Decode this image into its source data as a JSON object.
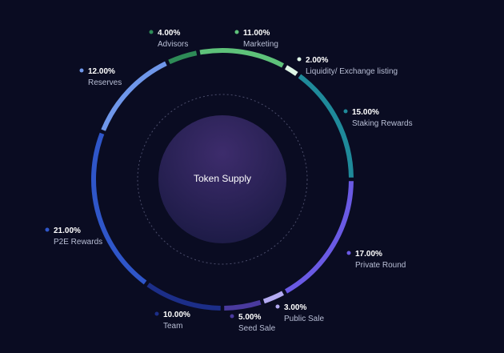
{
  "chart_data": {
    "type": "donut",
    "center_label": "Token Supply",
    "categories": [
      "Marketing",
      "Liquidity/ Exchange listing",
      "Staking Rewards",
      "Private Round",
      "Public Sale",
      "Seed Sale",
      "Team",
      "P2E Rewards",
      "Reserves",
      "Advisors"
    ],
    "values": [
      11,
      2,
      15,
      17,
      3,
      5,
      10,
      21,
      12,
      4
    ],
    "value_labels": [
      "11.00%",
      "2.00%",
      "15.00%",
      "17.00%",
      "3.00%",
      "5.00%",
      "10.00%",
      "21.00%",
      "12.00%",
      "4.00%"
    ],
    "colors": [
      "#5ec27a",
      "#dff7e6",
      "#1f8a9a",
      "#6a5ae4",
      "#b3aaf2",
      "#4a3a9e",
      "#1c2e88",
      "#2f56c9",
      "#6f97ea",
      "#2e8b57"
    ]
  }
}
